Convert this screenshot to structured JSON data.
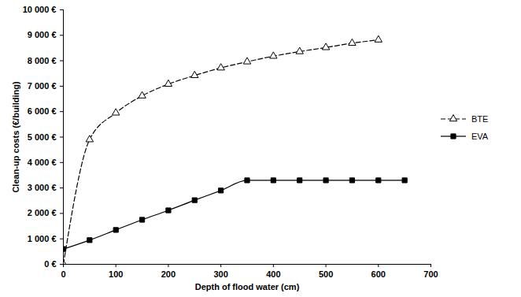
{
  "chart_data": {
    "type": "line",
    "x_label": "Depth of flood water (cm)",
    "y_label": "Clean-up costs (€/building)",
    "x": [
      0,
      50,
      100,
      150,
      200,
      250,
      300,
      350,
      400,
      450,
      500,
      550,
      600,
      650
    ],
    "series": [
      {
        "name": "BTE",
        "color": "#000000",
        "marker": "triangle",
        "line_style": "dashed",
        "values": [
          0,
          4900,
          5950,
          6620,
          7080,
          7420,
          7720,
          7960,
          8180,
          8360,
          8520,
          8690,
          8820,
          null
        ]
      },
      {
        "name": "EVA",
        "color": "#000000",
        "marker": "square",
        "line_style": "solid",
        "values": [
          600,
          950,
          1350,
          1750,
          2120,
          2520,
          2900,
          3300,
          3300,
          3300,
          3300,
          3300,
          3300,
          3300
        ]
      }
    ],
    "xlim": [
      0,
      700
    ],
    "xticks": [
      0,
      100,
      200,
      300,
      400,
      500,
      600,
      700
    ],
    "ylim": [
      0,
      10000
    ],
    "yticks": [
      {
        "value": 0,
        "label": "0 €"
      },
      {
        "value": 1000,
        "label": "1 000 €"
      },
      {
        "value": 2000,
        "label": "2 000 €"
      },
      {
        "value": 3000,
        "label": "3 000 €"
      },
      {
        "value": 4000,
        "label": "4 000 €"
      },
      {
        "value": 5000,
        "label": "5 000 €"
      },
      {
        "value": 6000,
        "label": "6 000 €"
      },
      {
        "value": 7000,
        "label": "7 000 €"
      },
      {
        "value": 8000,
        "label": "8 000 €"
      },
      {
        "value": 9000,
        "label": "9 000 €"
      },
      {
        "value": 10000,
        "label": "10 000 €"
      }
    ],
    "grid": false,
    "legend": "right"
  }
}
